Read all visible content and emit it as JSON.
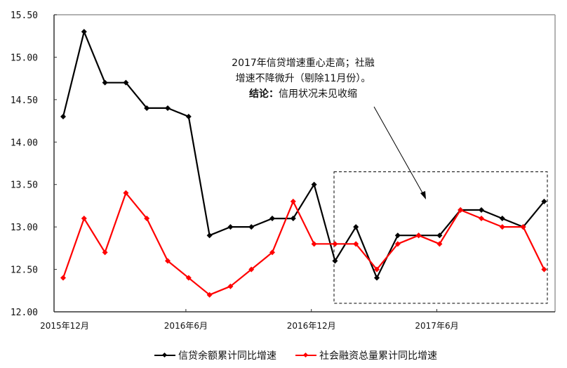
{
  "chart_data": {
    "type": "line",
    "title": "",
    "xlabel": "",
    "ylabel": "",
    "ylim": [
      12.0,
      15.5
    ],
    "yticks": [
      "12.00",
      "12.50",
      "13.00",
      "13.50",
      "14.00",
      "14.50",
      "15.00",
      "15.50"
    ],
    "xtick_labels": [
      {
        "label": "2015年12月",
        "index": 0
      },
      {
        "label": "2016年6月",
        "index": 6
      },
      {
        "label": "2016年12月",
        "index": 12
      },
      {
        "label": "2017年6月",
        "index": 18
      }
    ],
    "x": [
      "2015-12",
      "2016-01",
      "2016-02",
      "2016-03",
      "2016-04",
      "2016-05",
      "2016-06",
      "2016-07",
      "2016-08",
      "2016-09",
      "2016-10",
      "2016-11",
      "2016-12",
      "2017-01",
      "2017-02",
      "2017-03",
      "2017-04",
      "2017-05",
      "2017-06",
      "2017-07",
      "2017-08",
      "2017-09",
      "2017-10",
      "2017-11"
    ],
    "series": [
      {
        "name": "信贷余额累计同比增速",
        "color": "#000000",
        "values": [
          14.3,
          15.3,
          14.7,
          14.7,
          14.4,
          14.4,
          14.3,
          12.9,
          13.0,
          13.0,
          13.1,
          13.1,
          13.5,
          12.6,
          13.0,
          12.4,
          12.9,
          12.9,
          12.9,
          13.2,
          13.2,
          13.1,
          13.0,
          13.3
        ]
      },
      {
        "name": "社会融资总量累计同比增速",
        "color": "#ff0000",
        "values": [
          12.4,
          13.1,
          12.7,
          13.4,
          13.1,
          12.6,
          12.4,
          12.2,
          12.3,
          12.5,
          12.7,
          13.3,
          12.8,
          12.8,
          12.8,
          12.5,
          12.8,
          12.9,
          12.8,
          13.2,
          13.1,
          13.0,
          13.0,
          12.5
        ]
      }
    ],
    "grid": false,
    "legend_position": "bottom",
    "annotation": {
      "lines": [
        "2017年信贷增速重心走高；社融",
        "增速不降微升（剔除11月份）。"
      ],
      "conclusion_label": "结论：",
      "conclusion_text": "信用状况未见收缩",
      "highlight_box": {
        "from_index": 13,
        "to_index": 23,
        "ymin": 12.1,
        "ymax": 13.65
      }
    }
  },
  "legend": {
    "items": [
      {
        "label": "信贷余额累计同比增速",
        "color": "#000000"
      },
      {
        "label": "社会融资总量累计同比增速",
        "color": "#ff0000"
      }
    ]
  }
}
